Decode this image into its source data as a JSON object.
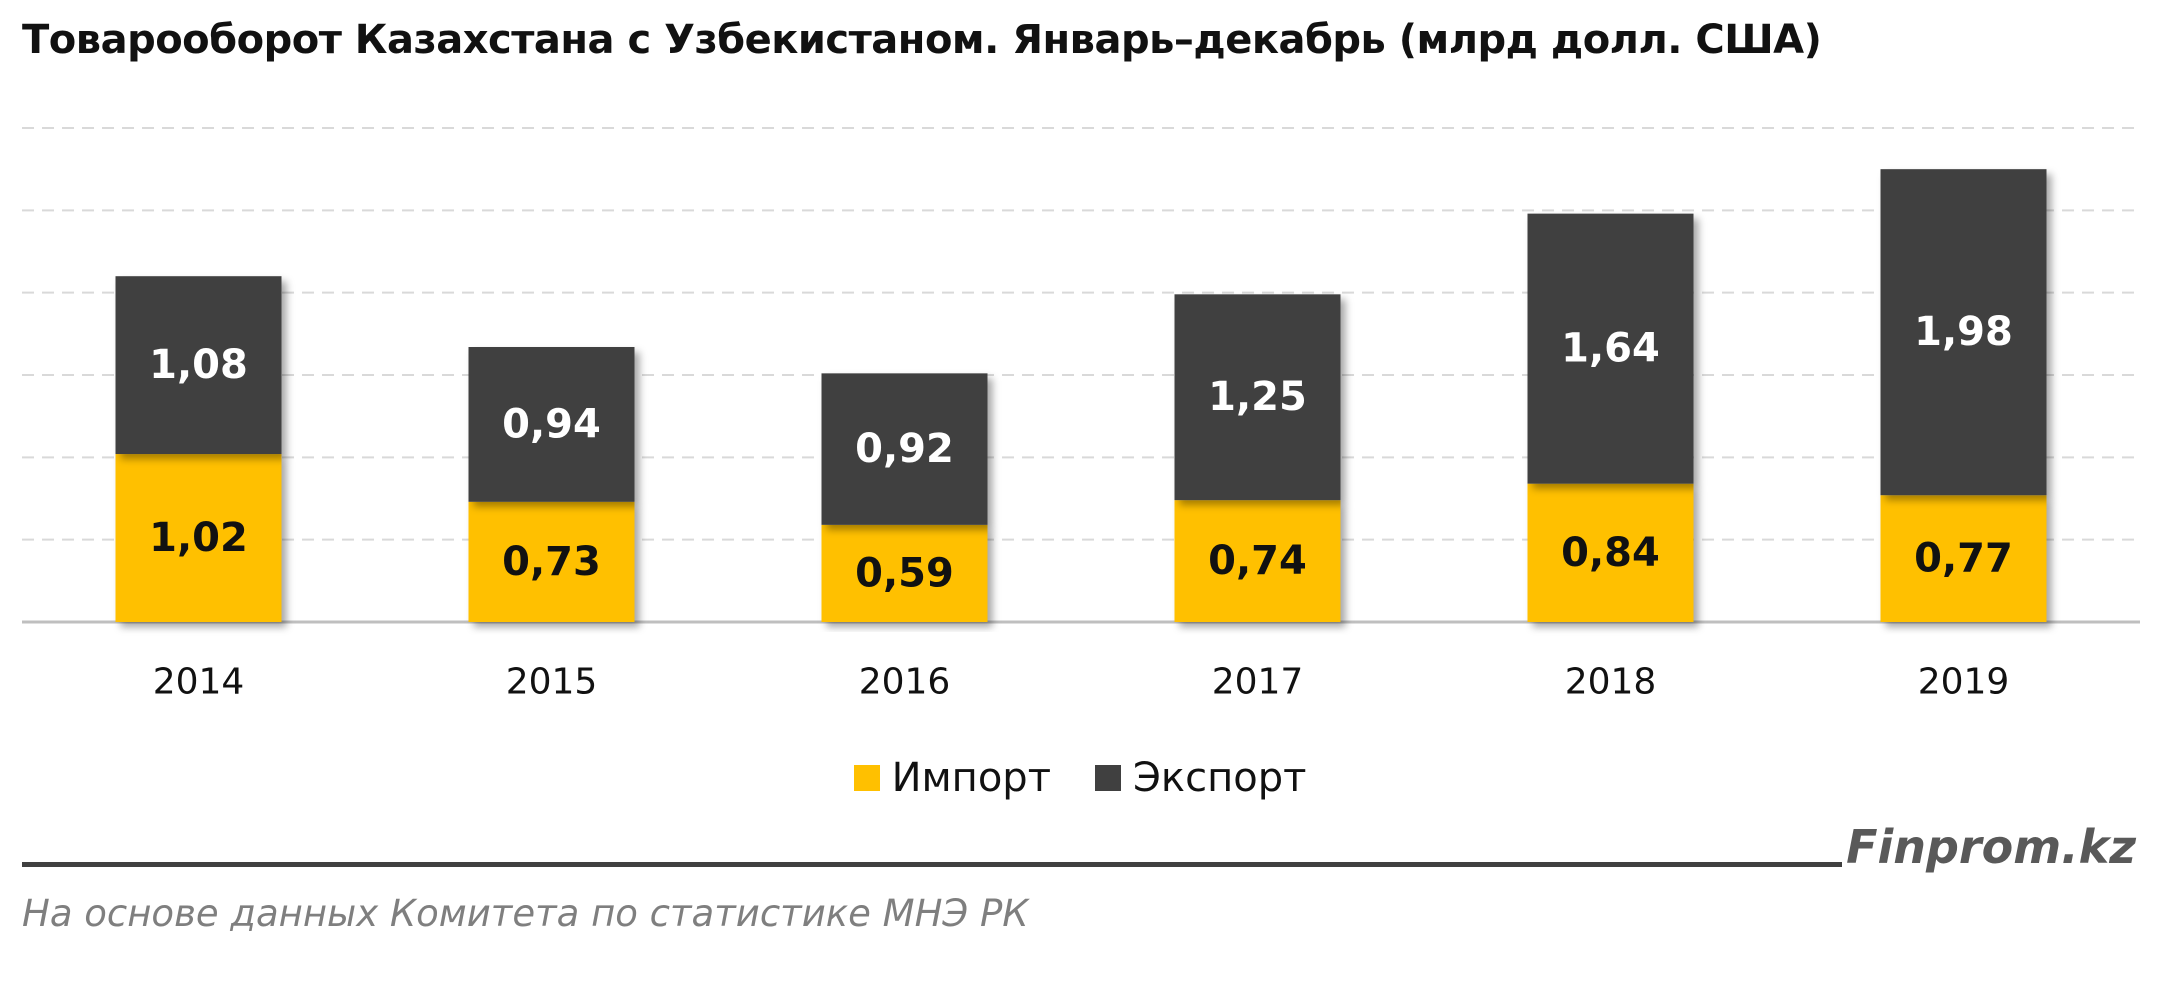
{
  "chart_data": {
    "type": "bar",
    "stacked": true,
    "title": "Товарооборот Казахстана с Узбекистаном. Январь–декабрь (млрд долл. США)",
    "categories": [
      "2014",
      "2015",
      "2016",
      "2017",
      "2018",
      "2019"
    ],
    "series": [
      {
        "name": "Импорт",
        "color": "#FFC000",
        "values": [
          1.02,
          0.73,
          0.59,
          0.74,
          0.84,
          0.77
        ],
        "labels": [
          "1,02",
          "0,73",
          "0,59",
          "0,74",
          "0,84",
          "0,77"
        ]
      },
      {
        "name": "Экспорт",
        "color": "#404040",
        "values": [
          1.08,
          0.94,
          0.92,
          1.25,
          1.64,
          1.98
        ],
        "labels": [
          "1,08",
          "0,94",
          "0,92",
          "1,25",
          "1,64",
          "1,98"
        ]
      }
    ],
    "ylim": [
      0,
      3.0
    ],
    "grid": true,
    "legend_position": "bottom"
  },
  "footer": {
    "brand": "Finprom.kz",
    "source": "На основе данных  Комитета по статистике МНЭ РК"
  }
}
